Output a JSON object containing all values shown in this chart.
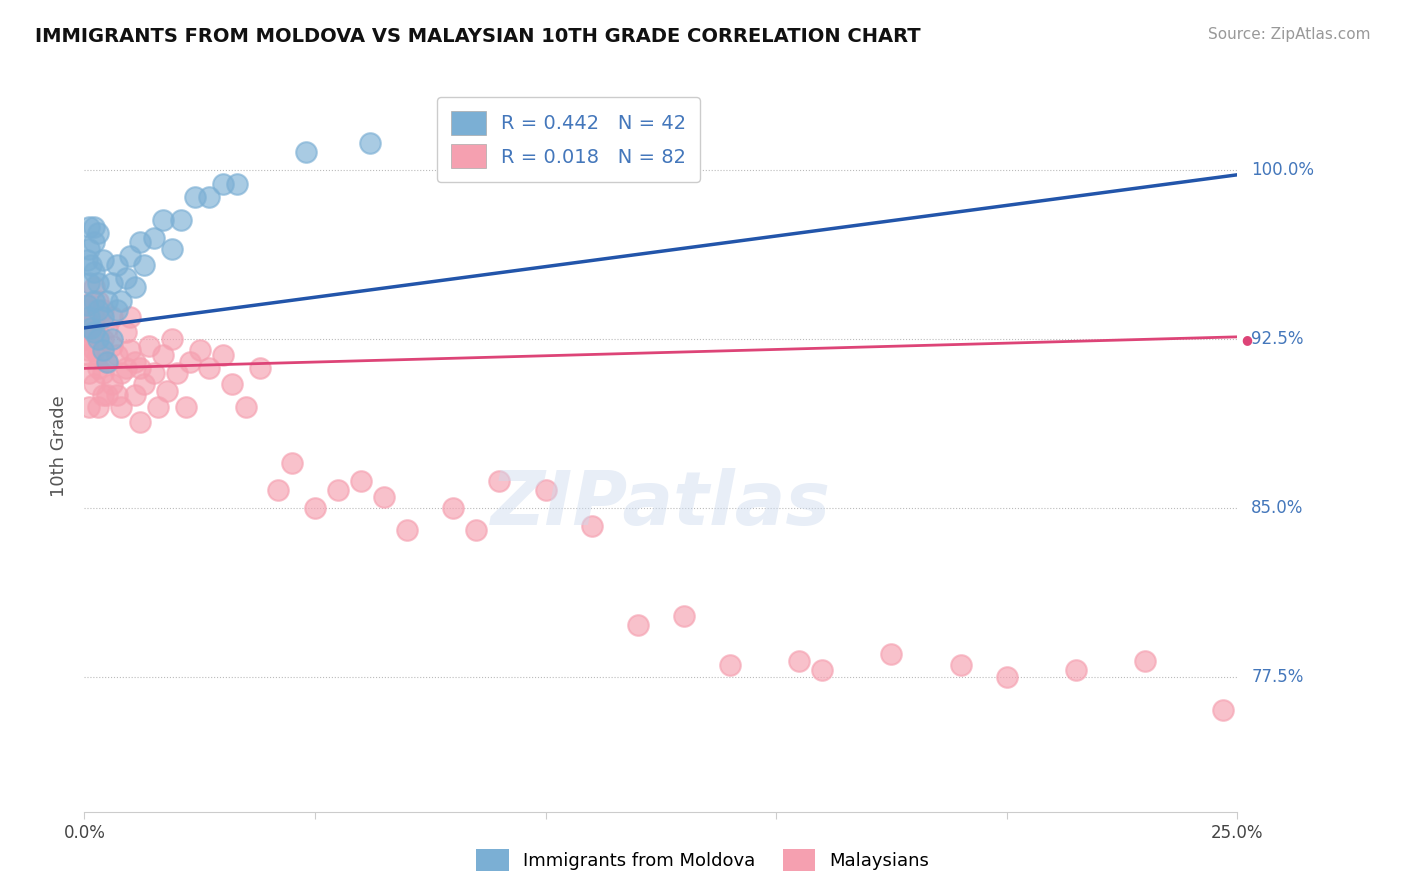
{
  "title": "IMMIGRANTS FROM MOLDOVA VS MALAYSIAN 10TH GRADE CORRELATION CHART",
  "source": "Source: ZipAtlas.com",
  "ylabel": "10th Grade",
  "y_tick_labels": [
    "77.5%",
    "85.0%",
    "92.5%",
    "100.0%"
  ],
  "y_tick_values": [
    0.775,
    0.85,
    0.925,
    1.0
  ],
  "x_min": 0.0,
  "x_max": 0.25,
  "y_min": 0.715,
  "y_max": 1.04,
  "blue_color": "#7BAFD4",
  "pink_color": "#F5A0B0",
  "blue_line_color": "#2255AA",
  "pink_line_color": "#DD4477",
  "r_blue": 0.442,
  "n_blue": 42,
  "r_pink": 0.018,
  "n_pink": 82,
  "legend_label_blue": "Immigrants from Moldova",
  "legend_label_pink": "Malaysians",
  "blue_x": [
    0.0005,
    0.0005,
    0.001,
    0.001,
    0.001,
    0.001,
    0.0015,
    0.0015,
    0.002,
    0.002,
    0.002,
    0.002,
    0.002,
    0.003,
    0.003,
    0.003,
    0.003,
    0.004,
    0.004,
    0.004,
    0.005,
    0.005,
    0.006,
    0.006,
    0.007,
    0.007,
    0.008,
    0.009,
    0.01,
    0.011,
    0.012,
    0.013,
    0.015,
    0.017,
    0.019,
    0.021,
    0.024,
    0.027,
    0.03,
    0.033,
    0.048,
    0.062
  ],
  "blue_y": [
    0.94,
    0.96,
    0.935,
    0.95,
    0.965,
    0.975,
    0.93,
    0.958,
    0.928,
    0.942,
    0.955,
    0.968,
    0.975,
    0.925,
    0.938,
    0.95,
    0.972,
    0.92,
    0.935,
    0.96,
    0.915,
    0.942,
    0.925,
    0.95,
    0.938,
    0.958,
    0.942,
    0.952,
    0.962,
    0.948,
    0.968,
    0.958,
    0.97,
    0.978,
    0.965,
    0.978,
    0.988,
    0.988,
    0.994,
    0.994,
    1.008,
    1.012
  ],
  "pink_x": [
    0.0002,
    0.0003,
    0.0005,
    0.0005,
    0.0008,
    0.001,
    0.001,
    0.001,
    0.001,
    0.001,
    0.001,
    0.0015,
    0.002,
    0.002,
    0.002,
    0.002,
    0.003,
    0.003,
    0.003,
    0.003,
    0.003,
    0.004,
    0.004,
    0.004,
    0.004,
    0.005,
    0.005,
    0.005,
    0.006,
    0.006,
    0.006,
    0.007,
    0.007,
    0.008,
    0.008,
    0.009,
    0.009,
    0.01,
    0.01,
    0.011,
    0.011,
    0.012,
    0.012,
    0.013,
    0.014,
    0.015,
    0.016,
    0.017,
    0.018,
    0.019,
    0.02,
    0.022,
    0.023,
    0.025,
    0.027,
    0.03,
    0.032,
    0.035,
    0.038,
    0.042,
    0.045,
    0.05,
    0.055,
    0.06,
    0.065,
    0.07,
    0.08,
    0.085,
    0.09,
    0.1,
    0.11,
    0.12,
    0.13,
    0.14,
    0.155,
    0.16,
    0.175,
    0.19,
    0.2,
    0.215,
    0.23,
    0.247
  ],
  "pink_y": [
    0.93,
    0.94,
    0.925,
    0.94,
    0.92,
    0.932,
    0.925,
    0.938,
    0.91,
    0.918,
    0.895,
    0.928,
    0.92,
    0.935,
    0.948,
    0.905,
    0.918,
    0.928,
    0.912,
    0.942,
    0.895,
    0.91,
    0.925,
    0.938,
    0.9,
    0.915,
    0.93,
    0.9,
    0.922,
    0.935,
    0.905,
    0.918,
    0.9,
    0.91,
    0.895,
    0.928,
    0.912,
    0.935,
    0.92,
    0.915,
    0.9,
    0.912,
    0.888,
    0.905,
    0.922,
    0.91,
    0.895,
    0.918,
    0.902,
    0.925,
    0.91,
    0.895,
    0.915,
    0.92,
    0.912,
    0.918,
    0.905,
    0.895,
    0.912,
    0.858,
    0.87,
    0.85,
    0.858,
    0.862,
    0.855,
    0.84,
    0.85,
    0.84,
    0.862,
    0.858,
    0.842,
    0.798,
    0.802,
    0.78,
    0.782,
    0.778,
    0.785,
    0.78,
    0.775,
    0.778,
    0.782,
    0.76
  ]
}
